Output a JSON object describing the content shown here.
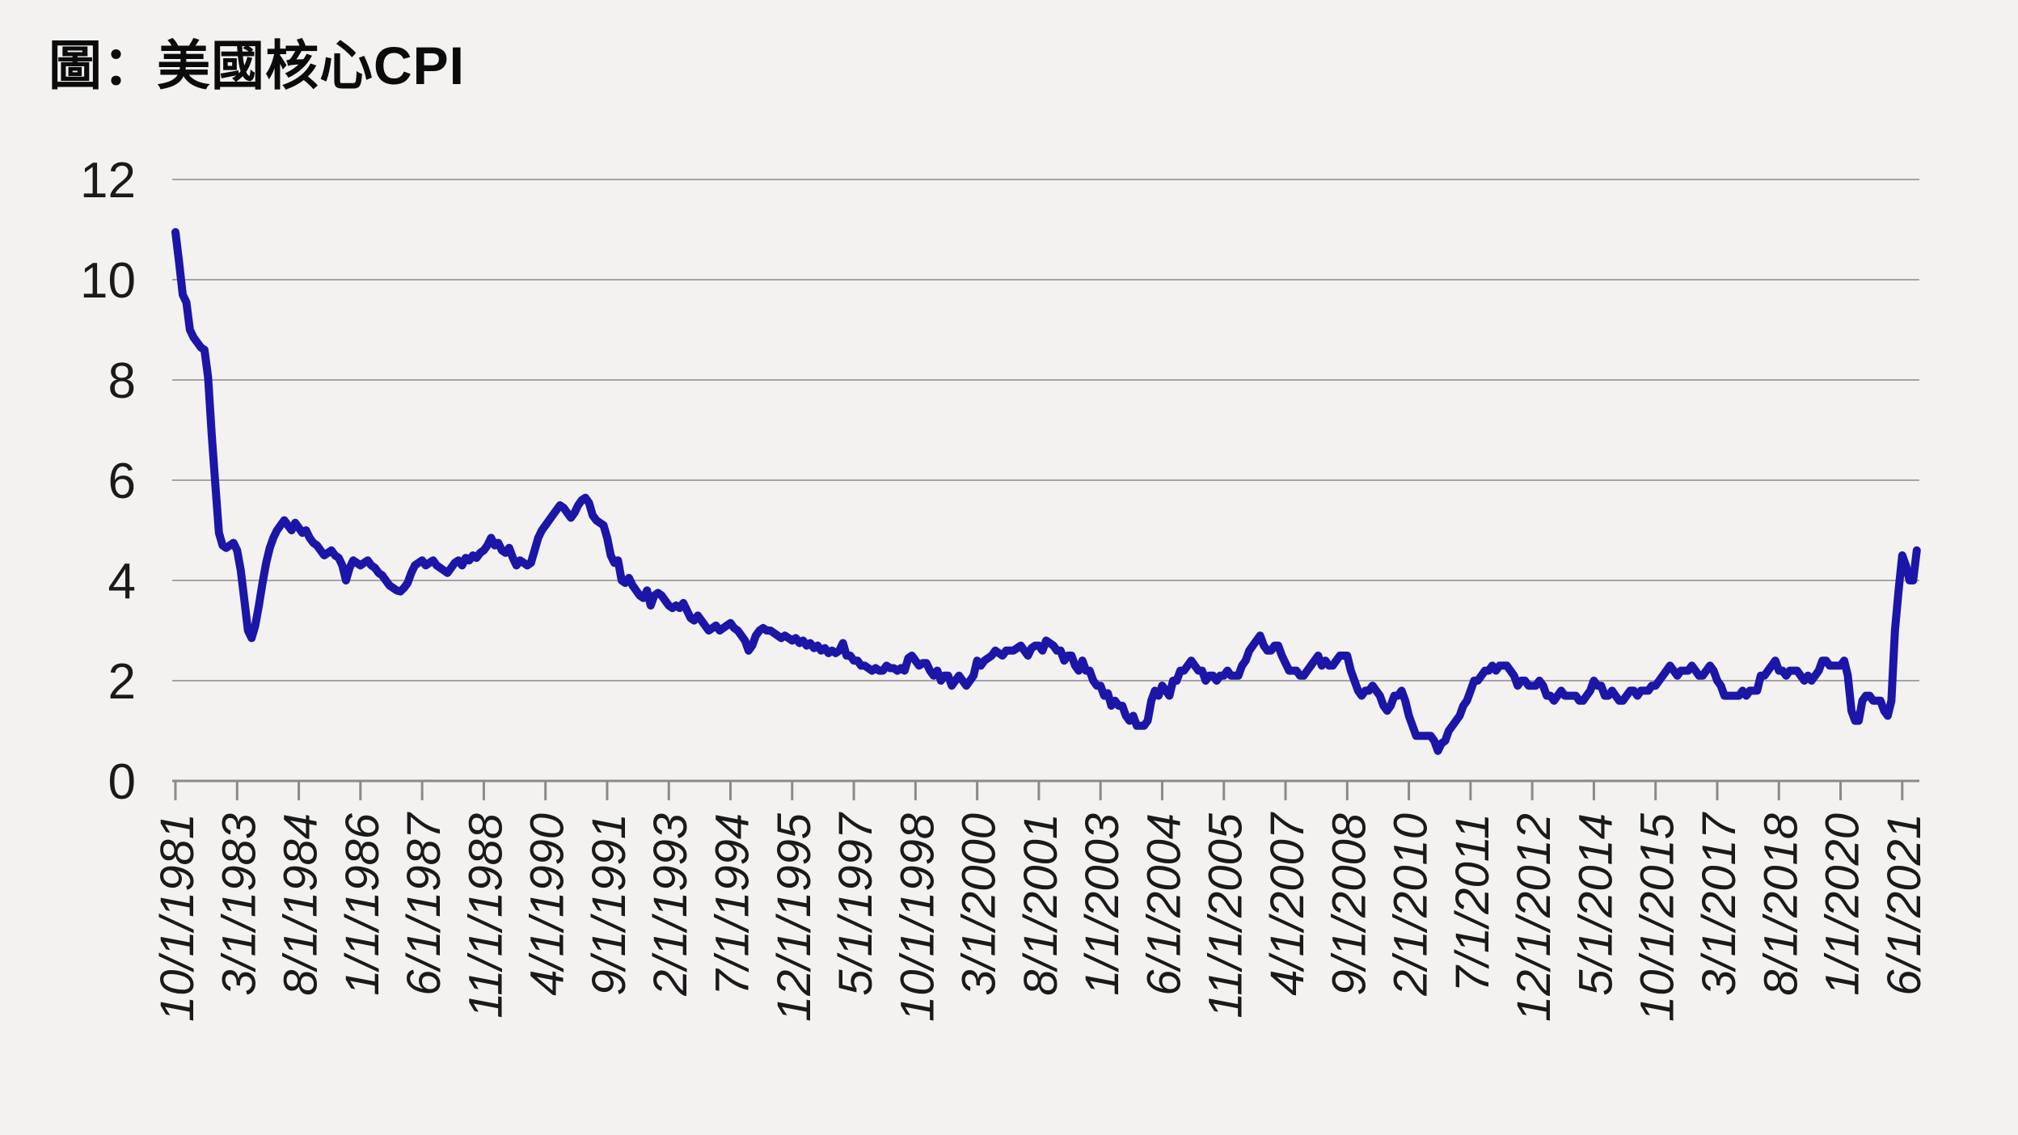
{
  "title": "圖：美國核心CPI",
  "colors": {
    "background": "#f3f2f0",
    "line": "#1b16a7",
    "gridline": "#a5a4a2",
    "axis": "#8b8a88",
    "label_text": "#1a1a1a",
    "title_text": "#0b0b0b"
  },
  "chart_data": {
    "type": "line",
    "title": "圖：美國核心CPI",
    "xlabel": "",
    "ylabel": "",
    "ylim": [
      0,
      12
    ],
    "y_ticks": [
      0,
      2,
      4,
      6,
      8,
      10,
      12
    ],
    "grid": "horizontal",
    "legend_position": "none",
    "frequency": "monthly",
    "x_start": "10/1/1981",
    "x_end": "10/1/2021",
    "x_tick_interval_months": 17,
    "x_tick_labels": [
      "10/1/1981",
      "3/1/1983",
      "8/1/1984",
      "1/1/1986",
      "6/1/1987",
      "11/1/1988",
      "4/1/1990",
      "9/1/1991",
      "2/1/1993",
      "7/1/1994",
      "12/1/1995",
      "5/1/1997",
      "10/1/1998",
      "3/1/2000",
      "8/1/2001",
      "1/1/2003",
      "6/1/2004",
      "11/1/2005",
      "4/1/2007",
      "9/1/2008",
      "2/1/2010",
      "7/1/2011",
      "12/1/2012",
      "5/1/2014",
      "10/1/2015",
      "3/1/2017",
      "8/1/2018",
      "1/1/2020",
      "6/1/2021"
    ],
    "values": [
      10.95,
      10.35,
      9.7,
      9.55,
      9.0,
      8.85,
      8.75,
      8.65,
      8.6,
      8.05,
      6.9,
      5.9,
      4.95,
      4.7,
      4.65,
      4.7,
      4.75,
      4.6,
      4.2,
      3.6,
      3.0,
      2.85,
      3.1,
      3.5,
      3.95,
      4.35,
      4.65,
      4.85,
      5.0,
      5.1,
      5.2,
      5.1,
      5.0,
      5.15,
      5.05,
      4.95,
      5.0,
      4.85,
      4.75,
      4.7,
      4.6,
      4.5,
      4.55,
      4.6,
      4.5,
      4.45,
      4.3,
      4.0,
      4.25,
      4.4,
      4.35,
      4.3,
      4.35,
      4.4,
      4.3,
      4.25,
      4.15,
      4.1,
      4.0,
      3.9,
      3.85,
      3.8,
      3.78,
      3.85,
      3.95,
      4.15,
      4.3,
      4.35,
      4.4,
      4.3,
      4.35,
      4.4,
      4.3,
      4.25,
      4.2,
      4.15,
      4.25,
      4.35,
      4.4,
      4.3,
      4.45,
      4.4,
      4.5,
      4.45,
      4.55,
      4.6,
      4.7,
      4.85,
      4.7,
      4.75,
      4.6,
      4.55,
      4.65,
      4.45,
      4.3,
      4.4,
      4.35,
      4.3,
      4.35,
      4.6,
      4.85,
      5.0,
      5.1,
      5.2,
      5.3,
      5.4,
      5.5,
      5.45,
      5.35,
      5.25,
      5.35,
      5.5,
      5.6,
      5.65,
      5.55,
      5.3,
      5.2,
      5.15,
      5.1,
      4.85,
      4.5,
      4.35,
      4.4,
      4.0,
      3.95,
      4.05,
      3.9,
      3.8,
      3.7,
      3.65,
      3.8,
      3.5,
      3.7,
      3.75,
      3.7,
      3.6,
      3.5,
      3.45,
      3.5,
      3.45,
      3.55,
      3.4,
      3.25,
      3.2,
      3.3,
      3.2,
      3.1,
      3.0,
      3.05,
      3.1,
      3.0,
      3.05,
      3.1,
      3.15,
      3.05,
      3.0,
      2.9,
      2.8,
      2.6,
      2.7,
      2.9,
      3.0,
      3.05,
      3.0,
      3.0,
      2.95,
      2.9,
      2.85,
      2.9,
      2.85,
      2.8,
      2.85,
      2.75,
      2.8,
      2.7,
      2.75,
      2.65,
      2.7,
      2.6,
      2.65,
      2.55,
      2.6,
      2.55,
      2.6,
      2.75,
      2.5,
      2.5,
      2.4,
      2.4,
      2.3,
      2.3,
      2.25,
      2.2,
      2.25,
      2.2,
      2.2,
      2.3,
      2.25,
      2.25,
      2.2,
      2.25,
      2.2,
      2.45,
      2.5,
      2.4,
      2.3,
      2.35,
      2.35,
      2.2,
      2.1,
      2.2,
      2.0,
      2.1,
      2.1,
      1.9,
      2.0,
      2.1,
      2.0,
      1.9,
      2.0,
      2.1,
      2.4,
      2.3,
      2.4,
      2.45,
      2.5,
      2.6,
      2.55,
      2.5,
      2.6,
      2.6,
      2.6,
      2.65,
      2.7,
      2.6,
      2.5,
      2.65,
      2.7,
      2.7,
      2.6,
      2.8,
      2.75,
      2.7,
      2.6,
      2.6,
      2.4,
      2.5,
      2.5,
      2.3,
      2.2,
      2.4,
      2.2,
      2.2,
      2.0,
      1.9,
      1.9,
      1.7,
      1.75,
      1.5,
      1.6,
      1.5,
      1.5,
      1.3,
      1.2,
      1.3,
      1.1,
      1.1,
      1.1,
      1.2,
      1.6,
      1.8,
      1.7,
      1.9,
      1.8,
      1.7,
      2.0,
      2.0,
      2.2,
      2.2,
      2.3,
      2.4,
      2.3,
      2.2,
      2.2,
      2.0,
      2.1,
      2.1,
      2.0,
      2.1,
      2.1,
      2.2,
      2.1,
      2.1,
      2.1,
      2.3,
      2.4,
      2.6,
      2.7,
      2.8,
      2.9,
      2.7,
      2.6,
      2.6,
      2.7,
      2.7,
      2.5,
      2.35,
      2.2,
      2.2,
      2.2,
      2.1,
      2.1,
      2.2,
      2.3,
      2.4,
      2.5,
      2.3,
      2.4,
      2.3,
      2.3,
      2.4,
      2.5,
      2.5,
      2.5,
      2.2,
      2.0,
      1.8,
      1.7,
      1.8,
      1.8,
      1.9,
      1.8,
      1.7,
      1.5,
      1.4,
      1.5,
      1.7,
      1.7,
      1.8,
      1.6,
      1.3,
      1.1,
      0.9,
      0.9,
      0.9,
      0.9,
      0.9,
      0.8,
      0.6,
      0.75,
      0.8,
      1.0,
      1.1,
      1.2,
      1.3,
      1.5,
      1.6,
      1.8,
      2.0,
      2.0,
      2.1,
      2.2,
      2.2,
      2.3,
      2.2,
      2.3,
      2.3,
      2.3,
      2.2,
      2.1,
      1.9,
      2.0,
      2.0,
      1.9,
      1.9,
      1.9,
      2.0,
      1.9,
      1.7,
      1.7,
      1.6,
      1.7,
      1.8,
      1.7,
      1.7,
      1.7,
      1.7,
      1.6,
      1.6,
      1.7,
      1.8,
      2.0,
      1.9,
      1.9,
      1.7,
      1.7,
      1.8,
      1.7,
      1.6,
      1.6,
      1.7,
      1.8,
      1.8,
      1.7,
      1.8,
      1.8,
      1.8,
      1.9,
      1.9,
      2.0,
      2.1,
      2.2,
      2.3,
      2.2,
      2.1,
      2.2,
      2.2,
      2.2,
      2.3,
      2.2,
      2.1,
      2.1,
      2.2,
      2.3,
      2.2,
      2.0,
      1.9,
      1.7,
      1.7,
      1.7,
      1.7,
      1.7,
      1.8,
      1.7,
      1.8,
      1.8,
      1.8,
      2.1,
      2.1,
      2.2,
      2.3,
      2.4,
      2.2,
      2.2,
      2.1,
      2.2,
      2.2,
      2.2,
      2.1,
      2.0,
      2.1,
      2.0,
      2.1,
      2.2,
      2.4,
      2.4,
      2.3,
      2.3,
      2.3,
      2.3,
      2.4,
      2.1,
      1.4,
      1.2,
      1.2,
      1.6,
      1.7,
      1.7,
      1.6,
      1.6,
      1.6,
      1.4,
      1.3,
      1.6,
      3.0,
      3.8,
      4.5,
      4.3,
      4.0,
      4.0,
      4.6
    ]
  }
}
